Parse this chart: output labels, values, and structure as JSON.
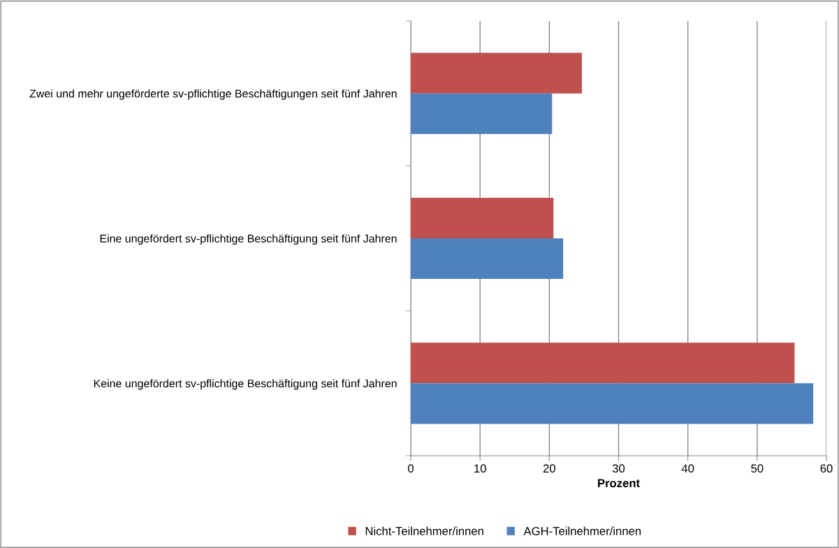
{
  "chart_data": {
    "type": "bar",
    "orientation": "horizontal",
    "xlabel": "Prozent",
    "categories": [
      "Zwei und mehr ungeförderte sv-pflichtige Beschäftigungen seit fünf Jahren",
      "Eine ungefördert sv-pflichtige Beschäftigung seit fünf Jahren",
      "Keine ungefördert sv-pflichtige Beschäftigung seit fünf Jahren"
    ],
    "series": [
      {
        "name": "Nicht-Teilnehmer/innen",
        "color": "#c0504d",
        "values": [
          24.7,
          20.6,
          55.4
        ]
      },
      {
        "name": "AGH-Teilnehmer/innen",
        "color": "#4f81bd",
        "values": [
          20.4,
          22.0,
          58.1
        ]
      }
    ],
    "xlim": [
      0,
      60
    ],
    "xticks": [
      0,
      10,
      20,
      30,
      40,
      50,
      60
    ],
    "grid": "x",
    "legend": "bottom"
  }
}
